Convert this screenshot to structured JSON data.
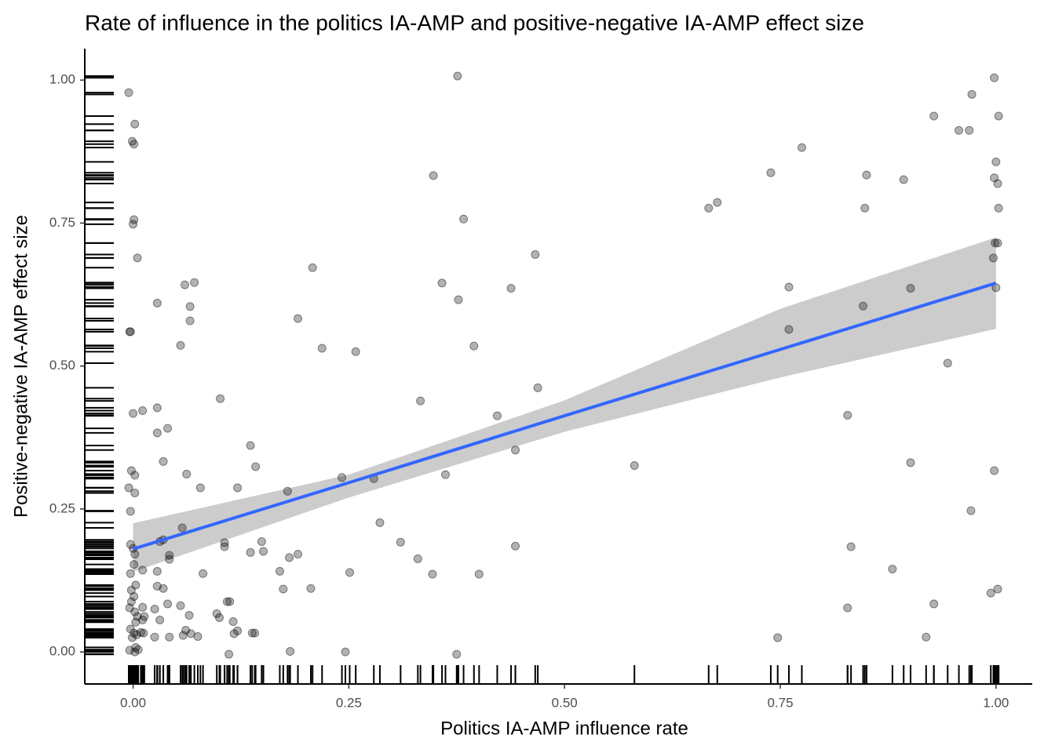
{
  "chart_data": {
    "type": "scatter",
    "title": "Rate of influence in the politics IA-AMP and positive-negative IA-AMP effect size",
    "x_label": "Politics IA-AMP influence rate",
    "y_label": "Positive-negative IA-AMP effect size",
    "xlim": [
      -0.056,
      1.042
    ],
    "ylim": [
      -0.056,
      1.055
    ],
    "xticks": [
      {
        "value": 0,
        "label": "0.00"
      },
      {
        "value": 0.25,
        "label": "0.25"
      },
      {
        "value": 0.5,
        "label": "0.50"
      },
      {
        "value": 0.75,
        "label": "0.75"
      },
      {
        "value": 1,
        "label": "1.00"
      }
    ],
    "yticks": [
      {
        "value": 0,
        "label": "0.00"
      },
      {
        "value": 0.25,
        "label": "0.25"
      },
      {
        "value": 0.5,
        "label": "0.50"
      },
      {
        "value": 0.75,
        "label": "0.75"
      },
      {
        "value": 1,
        "label": "1.00"
      }
    ],
    "color": "#000000",
    "opacity": 0.3,
    "rug": true,
    "x": [
      -0.005,
      0.002,
      -0.001,
      0.001,
      0.001,
      0,
      0.005,
      -0.004,
      -0.003,
      0,
      0.011,
      -0.002,
      0.002,
      -0.005,
      0.002,
      -0.003,
      -0.003,
      0,
      0.002,
      0.001,
      -0.003,
      0.003,
      -0.002,
      0.001,
      -0.004,
      0.002,
      0.005,
      -0.003,
      0.001,
      0.004,
      -0.001,
      0.003,
      -0.004,
      0.002,
      0.006,
      0.011,
      0.013,
      0.012,
      0.028,
      0.028,
      0.003,
      -0.002,
      0.028,
      0.028,
      0.028,
      0.04,
      0.035,
      0.031,
      0.035,
      0.042,
      0.042,
      0.035,
      0.04,
      0.025,
      0.031,
      0.042,
      0.025,
      0.011,
      0.011,
      0.009,
      0.06,
      0.071,
      0.066,
      0.066,
      0.055,
      0.062,
      0.078,
      0.057,
      0.081,
      0.055,
      0.065,
      0.061,
      0.067,
      0.075,
      0.058,
      0.101,
      0.097,
      0.1,
      0.106,
      0.106,
      0.109,
      0.112,
      0.116,
      0.117,
      0.121,
      0.111,
      0.121,
      0.136,
      0.142,
      0.149,
      0.151,
      0.136,
      0.138,
      0.141,
      0.17,
      0.174,
      0.179,
      0.181,
      0.182,
      0.191,
      0.191,
      0.208,
      0.206,
      0.219,
      0.258,
      0.242,
      0.251,
      0.246,
      0.279,
      0.286,
      0.31,
      0.33,
      0.333,
      0.347,
      0.348,
      0.358,
      0.362,
      0.376,
      0.377,
      0.383,
      0.375,
      0.395,
      0.401,
      0.422,
      0.438,
      0.443,
      0.443,
      0.466,
      0.469,
      0.581,
      0.667,
      0.677,
      0.739,
      0.747,
      0.76,
      0.76,
      0.775,
      0.828,
      0.828,
      0.832,
      0.846,
      0.848,
      0.85,
      0.88,
      0.893,
      0.901,
      0.901,
      0.919,
      0.928,
      0.928,
      0.944,
      0.957,
      0.969,
      0.971,
      0.972,
      0.994,
      0.997,
      0.998,
      0.998,
      0.998,
      0.999,
      1,
      1,
      1.002,
      1.002,
      1.003,
      1.003,
      1.002
    ],
    "values": [
      0.978,
      0.923,
      0.893,
      0.888,
      0.756,
      0.748,
      0.689,
      0.56,
      0.56,
      0.417,
      0.422,
      0.317,
      0.309,
      0.287,
      0.278,
      0.246,
      0.188,
      0.181,
      0.171,
      0.153,
      0.137,
      0.117,
      0.108,
      0.097,
      0.077,
      0.07,
      0.062,
      0.04,
      0.033,
      0.03,
      0.025,
      0.008,
      0.003,
      0,
      0.004,
      0.143,
      0.062,
      0.033,
      0.141,
      0.115,
      0.052,
      0.088,
      0.61,
      0.427,
      0.383,
      0.391,
      0.333,
      0.193,
      0.196,
      0.169,
      0.162,
      0.111,
      0.084,
      0.075,
      0.056,
      0.026,
      0.026,
      0.078,
      0.056,
      0.034,
      0.642,
      0.646,
      0.604,
      0.579,
      0.536,
      0.311,
      0.287,
      0.217,
      0.137,
      0.081,
      0.064,
      0.038,
      0.032,
      0.027,
      0.029,
      0.443,
      0.067,
      0.06,
      0.191,
      0.184,
      0.088,
      0.088,
      0.053,
      0.032,
      0.037,
      -0.004,
      0.287,
      0.361,
      0.324,
      0.193,
      0.176,
      0.174,
      0.033,
      0.033,
      0.141,
      0.11,
      0.281,
      0.165,
      0.001,
      0.583,
      0.171,
      0.672,
      0.111,
      0.531,
      0.525,
      0.305,
      0.139,
      0,
      0.303,
      0.226,
      0.192,
      0.163,
      0.439,
      0.136,
      0.833,
      0.645,
      0.31,
      1.007,
      0.616,
      0.757,
      -0.004,
      0.535,
      0.136,
      0.413,
      0.636,
      0.353,
      0.185,
      0.695,
      0.462,
      0.326,
      0.776,
      0.786,
      0.838,
      0.025,
      0.638,
      0.564,
      0.882,
      0.414,
      0.077,
      0.184,
      0.605,
      0.776,
      0.834,
      0.145,
      0.826,
      0.636,
      0.331,
      0.026,
      0.937,
      0.084,
      0.505,
      0.912,
      0.912,
      0.247,
      0.975,
      0.103,
      0.689,
      1.004,
      0.829,
      0.317,
      0.715,
      0.857,
      0.637,
      0.819,
      0.715,
      0.776,
      0.937,
      0.11
    ],
    "fit": {
      "x": [
        0,
        0.25,
        0.5,
        0.75,
        1
      ],
      "values": [
        0.18,
        0.296,
        0.413,
        0.529,
        0.645
      ],
      "lower": [
        0.14,
        0.27,
        0.385,
        0.48,
        0.565
      ],
      "upper": [
        0.225,
        0.31,
        0.44,
        0.6,
        0.725
      ],
      "color": "#3366ff",
      "band_color": "#cccccc"
    }
  }
}
